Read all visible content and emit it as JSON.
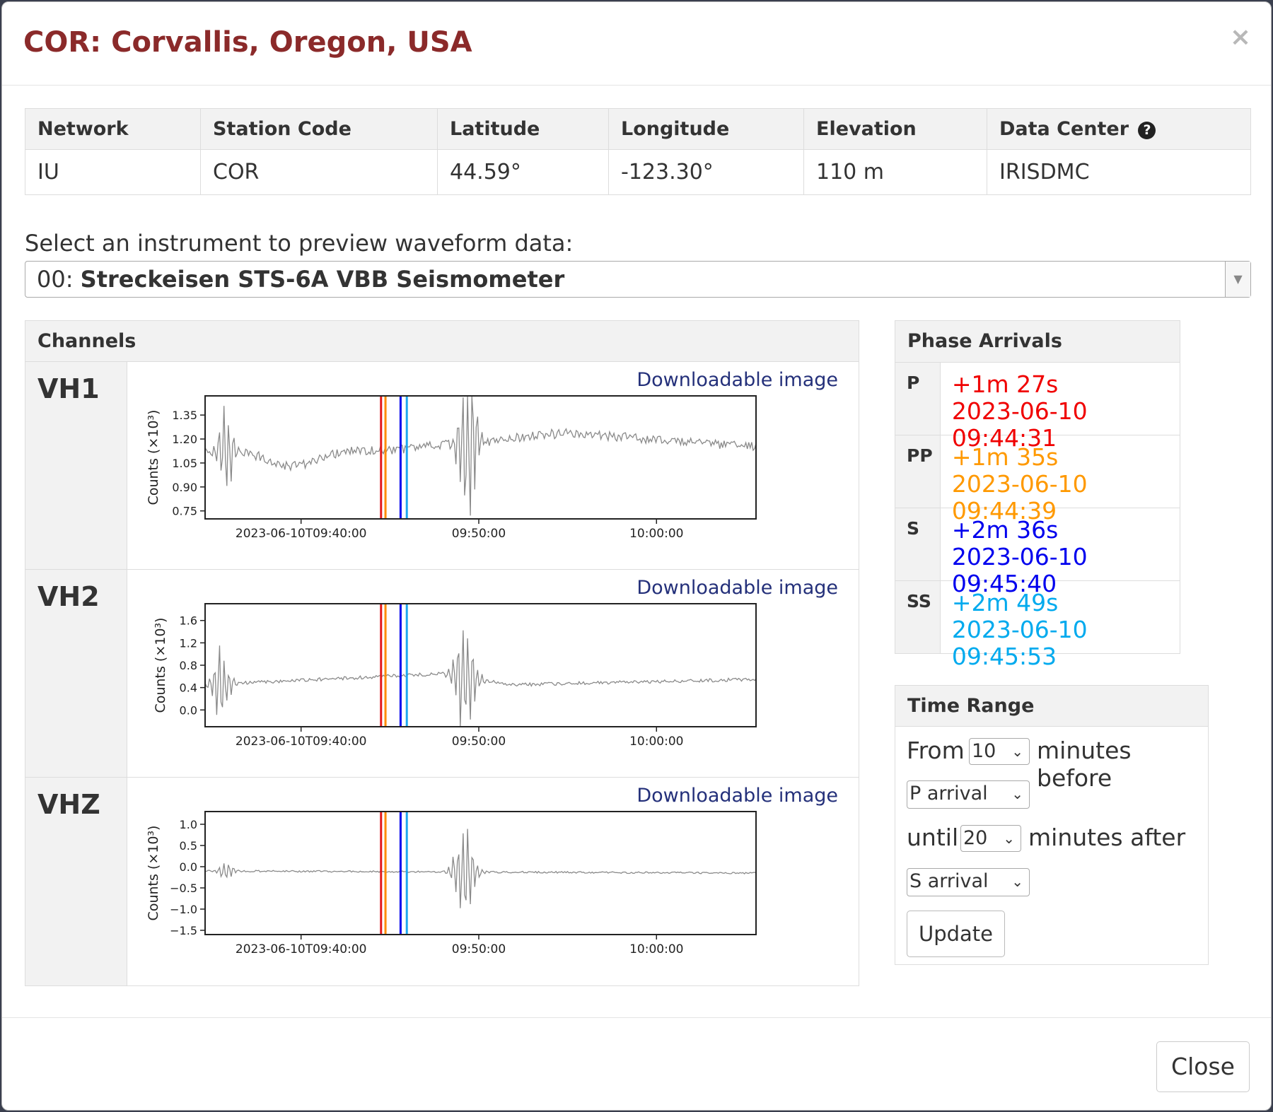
{
  "modal": {
    "title": "COR: Corvallis, Oregon, USA",
    "close_symbol": "×"
  },
  "station_table": {
    "headers": [
      "Network",
      "Station Code",
      "Latitude",
      "Longitude",
      "Elevation",
      "Data Center"
    ],
    "values": [
      "IU",
      "COR",
      "44.59°",
      "-123.30°",
      "110 m",
      "IRISDMC"
    ],
    "help_icon": "question-circle-icon"
  },
  "instrument": {
    "label": "Select an instrument to preview waveform data:",
    "code": "00:",
    "name": "Streckeisen STS-6A VBB Seismometer",
    "arrow": "▼"
  },
  "channels": {
    "heading": "Channels",
    "download_label": "Downloadable image",
    "items": [
      {
        "name": "VH1",
        "chart_data": {
          "type": "line",
          "ylabel": "Counts (×10³)",
          "yticks": [
            "1.35",
            "1.20",
            "1.05",
            "0.90",
            "0.75"
          ],
          "ytick_values": [
            1.35,
            1.2,
            1.05,
            0.9,
            0.75
          ],
          "ylim": [
            0.7,
            1.47
          ],
          "xticks": [
            "2023-06-10T09:40:00",
            "09:50:00",
            "10:00:00"
          ],
          "xtick_minutes": [
            0,
            10,
            20
          ],
          "xlim_minutes": [
            -5.4,
            25.6
          ],
          "baseline": 1.13,
          "noise": 0.03,
          "dip": {
            "center_minute": -0.4,
            "width": 2.0,
            "depth": 0.1
          },
          "bursts": [
            {
              "minute": -4.2,
              "amp": 0.3,
              "width": 0.45
            },
            {
              "minute": 9.4,
              "amp": 0.6,
              "width": 0.55
            }
          ],
          "trend": [
            {
              "minute": 5.0,
              "value": 1.13
            },
            {
              "minute": 15.0,
              "value": 1.24
            },
            {
              "minute": 25.6,
              "value": 1.15
            }
          ]
        }
      },
      {
        "name": "VH2",
        "chart_data": {
          "type": "line",
          "ylabel": "Counts (×10³)",
          "yticks": [
            "1.6",
            "1.2",
            "0.8",
            "0.4",
            "0.0"
          ],
          "ytick_values": [
            1.6,
            1.2,
            0.8,
            0.4,
            0.0
          ],
          "ylim": [
            -0.3,
            1.9
          ],
          "xticks": [
            "2023-06-10T09:40:00",
            "09:50:00",
            "10:00:00"
          ],
          "xtick_minutes": [
            0,
            10,
            20
          ],
          "xlim_minutes": [
            -5.4,
            25.6
          ],
          "baseline": 0.5,
          "noise": 0.03,
          "bursts": [
            {
              "minute": -4.5,
              "amp": 0.8,
              "width": 0.5
            },
            {
              "minute": 9.2,
              "amp": 1.2,
              "width": 0.6
            }
          ],
          "trend": [
            {
              "minute": -5.4,
              "value": 0.45
            },
            {
              "minute": 8.0,
              "value": 0.65
            },
            {
              "minute": 12.0,
              "value": 0.45
            },
            {
              "minute": 25.6,
              "value": 0.55
            }
          ]
        }
      },
      {
        "name": "VHZ",
        "chart_data": {
          "type": "line",
          "ylabel": "Counts (×10³)",
          "yticks": [
            "1.0",
            "0.5",
            "0.0",
            "−0.5",
            "−1.0",
            "−1.5"
          ],
          "ytick_values": [
            1.0,
            0.5,
            0.0,
            -0.5,
            -1.0,
            -1.5
          ],
          "ylim": [
            -1.6,
            1.3
          ],
          "xticks": [
            "2023-06-10T09:40:00",
            "09:50:00",
            "10:00:00"
          ],
          "xtick_minutes": [
            0,
            10,
            20
          ],
          "xlim_minutes": [
            -5.4,
            25.6
          ],
          "baseline": -0.1,
          "noise": 0.02,
          "bursts": [
            {
              "minute": -4.2,
              "amp": 0.3,
              "width": 0.4
            },
            {
              "minute": 9.2,
              "amp": 1.3,
              "width": 0.6
            }
          ],
          "trend": [
            {
              "minute": -5.4,
              "value": -0.1
            },
            {
              "minute": 25.6,
              "value": -0.15
            }
          ]
        }
      }
    ]
  },
  "phase_lines": [
    {
      "minute": 4.5,
      "color": "#e31a1c"
    },
    {
      "minute": 4.75,
      "color": "#ff8c00"
    },
    {
      "minute": 5.6,
      "color": "#0000ee"
    },
    {
      "minute": 5.95,
      "color": "#1ea7ef"
    }
  ],
  "phase_arrivals": {
    "heading": "Phase Arrivals",
    "items": [
      {
        "name": "P",
        "offset": "+1m 27s",
        "time": "2023-06-10 09:44:31",
        "color": "#f00000"
      },
      {
        "name": "PP",
        "offset": "+1m 35s",
        "time": "2023-06-10 09:44:39",
        "color": "#ff9900"
      },
      {
        "name": "S",
        "offset": "+2m 36s",
        "time": "2023-06-10 09:45:40",
        "color": "#0000ee"
      },
      {
        "name": "SS",
        "offset": "+2m 49s",
        "time": "2023-06-10 09:45:53",
        "color": "#00aaee"
      }
    ]
  },
  "time_range": {
    "heading": "Time Range",
    "from_label": "From",
    "before_value": "10",
    "before_label": "minutes before",
    "start_phase": "P arrival",
    "until_label": "until",
    "after_value": "20",
    "after_label": "minutes after",
    "end_phase": "S arrival",
    "update_label": "Update",
    "chevron": "⌄"
  },
  "footer": {
    "close_label": "Close"
  }
}
